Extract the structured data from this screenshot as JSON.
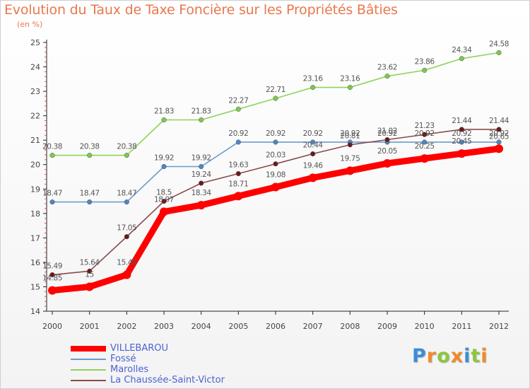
{
  "chart_data": {
    "type": "line",
    "title": "Evolution du Taux de Taxe Foncière sur les Propriétés Bâties",
    "ylabel": "(en %)",
    "xlabel": "",
    "categories": [
      "2000",
      "2001",
      "2002",
      "2003",
      "2004",
      "2005",
      "2006",
      "2007",
      "2008",
      "2009",
      "2010",
      "2011",
      "2012"
    ],
    "y_ticks": [
      "14",
      "15",
      "16",
      "17",
      "18",
      "19",
      "20",
      "21",
      "22",
      "23",
      "24",
      "25"
    ],
    "ylim": [
      14,
      25
    ],
    "grid": false,
    "series": [
      {
        "name": "Marolles",
        "color": "#8fd35a",
        "marker": "#7ec850",
        "values": [
          20.38,
          20.38,
          20.38,
          21.83,
          21.83,
          22.27,
          22.71,
          23.16,
          23.16,
          23.62,
          23.86,
          24.34,
          24.58
        ],
        "labels": [
          "20.38",
          "20.38",
          "20.38",
          "21.83",
          "21.83",
          "22.27",
          "22.71",
          "23.16",
          "23.16",
          "23.62",
          "23.86",
          "24.34",
          "24.58"
        ]
      },
      {
        "name": "Fossé",
        "color": "#6a9ccc",
        "marker": "#4f86c1",
        "values": [
          18.47,
          18.47,
          18.47,
          19.92,
          19.92,
          20.92,
          20.92,
          20.92,
          20.92,
          20.92,
          20.92,
          20.92,
          20.92
        ],
        "labels": [
          "18.47",
          "18.47",
          "18.47",
          "19.92",
          "19.92",
          "20.92",
          "20.92",
          "20.92",
          "20.92",
          "20.92",
          "20.92",
          "20.92",
          "20.92"
        ]
      },
      {
        "name": "La Chaussée-Saint-Victor",
        "color": "#8a4a4a",
        "marker": "#6a1a1a",
        "values": [
          15.49,
          15.64,
          17.05,
          18.5,
          19.24,
          19.63,
          20.03,
          20.44,
          20.81,
          21.02,
          21.23,
          21.44,
          21.44
        ],
        "labels": [
          "15.49",
          "15.64",
          "17.05",
          "18.5",
          "19.24",
          "19.63",
          "20.03",
          "20.44",
          "20.81",
          "21.02",
          "21.23",
          "21.44",
          "21.44"
        ]
      },
      {
        "name": "VILLEBAROU",
        "color": "#ff0000",
        "marker": "#ff0000",
        "thick": true,
        "values": [
          14.85,
          15.0,
          15.49,
          18.07,
          18.34,
          18.71,
          19.08,
          19.46,
          19.75,
          20.05,
          20.25,
          20.45,
          20.65
        ],
        "labels": [
          "14.85",
          "15",
          "15.49",
          "18.07",
          "18.34",
          "18.71",
          "19.08",
          "19.46",
          "19.75",
          "20.05",
          "20.25",
          "20.45",
          "20.65"
        ]
      }
    ],
    "legend": [
      {
        "name": "VILLEBAROU",
        "color": "#ff0000",
        "thick": true
      },
      {
        "name": "Fossé",
        "color": "#6a9ccc",
        "thick": false
      },
      {
        "name": "Marolles",
        "color": "#8fd35a",
        "thick": false
      },
      {
        "name": "La Chaussée-Saint-Victor",
        "color": "#8a4a4a",
        "thick": false
      }
    ]
  },
  "logo": {
    "letters": [
      "P",
      "r",
      "o",
      "x",
      "i",
      "t",
      "i"
    ],
    "colors": [
      "#3a8fd6",
      "#f08a2a",
      "#8cc63f",
      "#f08a2a",
      "#3a8fd6",
      "#8cc63f",
      "#f08a2a"
    ]
  }
}
